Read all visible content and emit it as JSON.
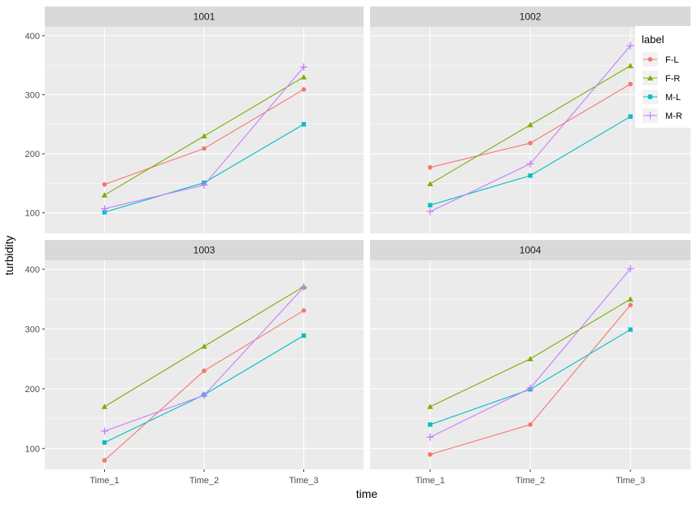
{
  "chart_data": {
    "type": "line",
    "facet_type": "wrap",
    "facet_layout": "2x2",
    "xlabel": "time",
    "ylabel": "turbidity",
    "categories": [
      "Time_1",
      "Time_2",
      "Time_3"
    ],
    "ylim": [
      65,
      415
    ],
    "yticks": [
      100,
      200,
      300,
      400
    ],
    "grid": true,
    "legend": {
      "title": "label",
      "position": "right-inside-top"
    },
    "series_meta": [
      {
        "name": "F-L",
        "color": "#F8766D",
        "shape": "circle"
      },
      {
        "name": "F-R",
        "color": "#7CAE00",
        "shape": "triangle"
      },
      {
        "name": "M-L",
        "color": "#00BFC4",
        "shape": "square"
      },
      {
        "name": "M-R",
        "color": "#C77CFF",
        "shape": "plus"
      }
    ],
    "panels": [
      {
        "title": "1001",
        "series": [
          {
            "name": "F-L",
            "values": [
              148,
              209,
              309
            ]
          },
          {
            "name": "F-R",
            "values": [
              130,
              230,
              330
            ]
          },
          {
            "name": "M-L",
            "values": [
              101,
              151,
              250
            ]
          },
          {
            "name": "M-R",
            "values": [
              107,
              147,
              347
            ]
          }
        ]
      },
      {
        "title": "1002",
        "series": [
          {
            "name": "F-L",
            "values": [
              177,
              218,
              318
            ]
          },
          {
            "name": "F-R",
            "values": [
              149,
              249,
              349
            ]
          },
          {
            "name": "M-L",
            "values": [
              113,
              163,
              263
            ]
          },
          {
            "name": "M-R",
            "values": [
              102,
              183,
              383
            ]
          }
        ]
      },
      {
        "title": "1003",
        "series": [
          {
            "name": "F-L",
            "values": [
              80,
              230,
              331
            ]
          },
          {
            "name": "F-R",
            "values": [
              170,
              271,
              371
            ]
          },
          {
            "name": "M-L",
            "values": [
              110,
              190,
              289
            ]
          },
          {
            "name": "M-R",
            "values": [
              129,
              189,
              370
            ]
          }
        ]
      },
      {
        "title": "1004",
        "series": [
          {
            "name": "F-L",
            "values": [
              90,
              140,
              340
            ]
          },
          {
            "name": "F-R",
            "values": [
              170,
              250,
              350
            ]
          },
          {
            "name": "M-L",
            "values": [
              140,
              199,
              299
            ]
          },
          {
            "name": "M-R",
            "values": [
              119,
              201,
              401
            ]
          }
        ]
      }
    ]
  }
}
